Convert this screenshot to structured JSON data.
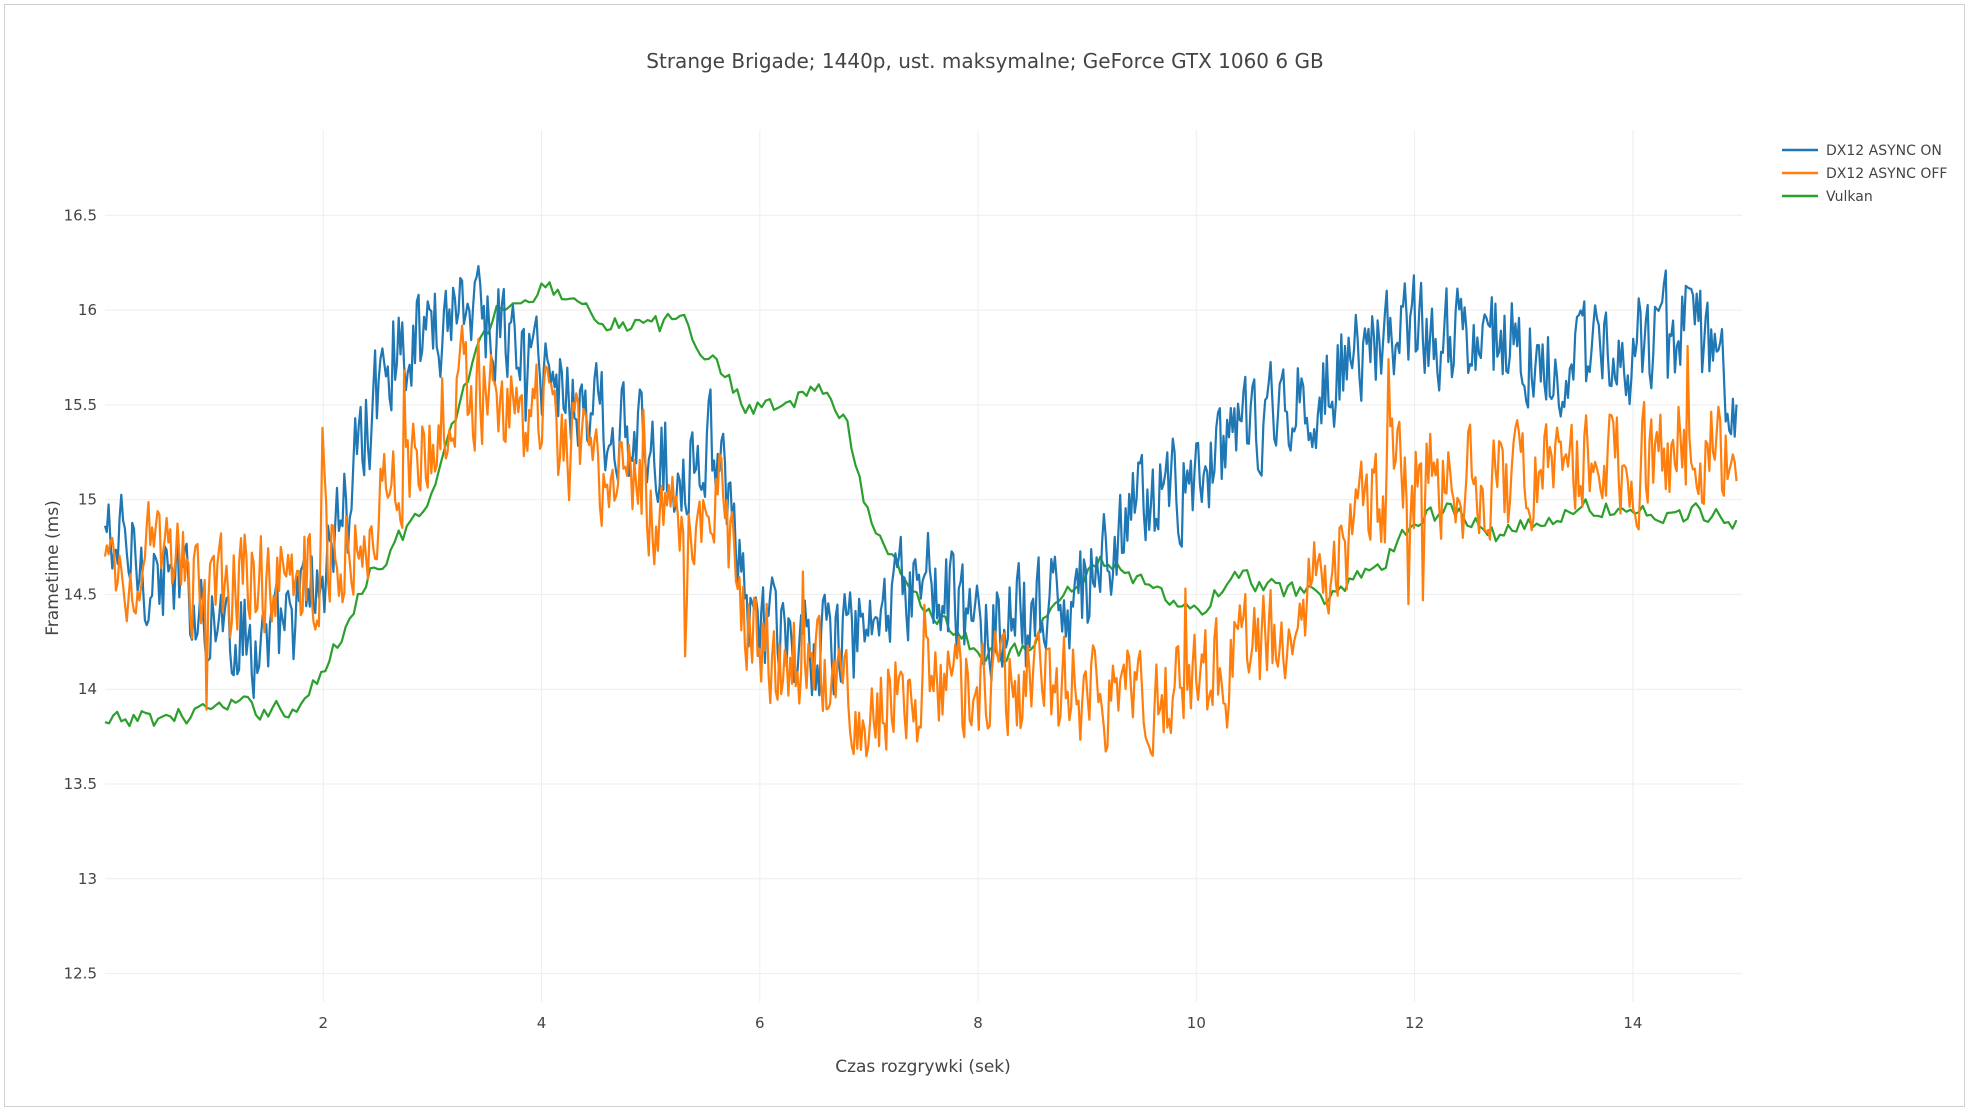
{
  "chart_data": {
    "type": "line",
    "title": "Strange Brigade; 1440p, ust. maksymalne; GeForce GTX 1060 6 GB",
    "xlabel": "Czas rozgrywki (sek)",
    "ylabel": "Frametime (ms)",
    "xlim": [
      0,
      15
    ],
    "ylim": [
      12.35,
      16.95
    ],
    "xticks": [
      2,
      4,
      6,
      8,
      10,
      12,
      14
    ],
    "yticks": [
      12.5,
      13,
      13.5,
      14,
      14.5,
      15,
      15.5,
      16,
      16.5
    ],
    "grid": true,
    "legend_position": "top-right",
    "series": [
      {
        "name": "DX12 ASYNC ON",
        "color": "#1f77b4",
        "jitter": 0.25,
        "x": [
          0,
          0.5,
          1.0,
          1.5,
          2.0,
          2.3,
          2.6,
          3.0,
          3.3,
          3.6,
          4.0,
          4.4,
          4.8,
          5.2,
          5.6,
          5.8,
          6.0,
          6.5,
          7.0,
          7.5,
          8.0,
          8.5,
          9.0,
          9.5,
          10.0,
          10.5,
          11.0,
          11.5,
          12.0,
          12.5,
          13.0,
          13.5,
          14.0,
          14.5,
          14.95
        ],
        "y": [
          14.8,
          14.6,
          14.4,
          14.2,
          14.6,
          15.2,
          15.8,
          15.9,
          16.1,
          15.9,
          15.7,
          15.5,
          15.3,
          15.2,
          15.3,
          14.6,
          14.3,
          14.2,
          14.3,
          14.6,
          14.3,
          14.4,
          14.5,
          15.0,
          15.1,
          15.4,
          15.5,
          15.8,
          15.9,
          15.9,
          15.8,
          15.7,
          15.8,
          15.9,
          15.6
        ]
      },
      {
        "name": "DX12 ASYNC OFF",
        "color": "#ff7f0e",
        "jitter": 0.26,
        "x": [
          0,
          0.5,
          1.0,
          1.5,
          2.0,
          2.3,
          2.6,
          3.0,
          3.3,
          3.6,
          4.0,
          4.4,
          4.8,
          5.2,
          5.6,
          6.0,
          6.5,
          7.0,
          7.5,
          8.0,
          8.5,
          9.0,
          9.5,
          10.0,
          10.5,
          11.0,
          11.3,
          11.6,
          12.0,
          12.5,
          13.0,
          13.5,
          14.0,
          14.5,
          14.95
        ],
        "y": [
          14.6,
          14.7,
          14.5,
          14.6,
          14.7,
          14.8,
          15.0,
          15.4,
          15.6,
          15.5,
          15.4,
          15.2,
          15.0,
          14.9,
          15.0,
          14.2,
          14.1,
          13.9,
          14.0,
          14.0,
          14.0,
          14.0,
          14.0,
          14.0,
          14.2,
          14.4,
          14.7,
          15.0,
          15.1,
          15.1,
          15.1,
          15.2,
          15.2,
          15.3,
          15.2
        ]
      },
      {
        "name": "Vulkan",
        "color": "#2ca02c",
        "jitter": 0.05,
        "x": [
          0,
          0.3,
          0.6,
          1.0,
          1.4,
          1.8,
          2.1,
          2.4,
          2.7,
          3.0,
          3.2,
          3.4,
          3.6,
          3.9,
          4.2,
          4.6,
          5.0,
          5.3,
          5.6,
          5.9,
          6.2,
          6.5,
          6.8,
          7.0,
          7.3,
          7.6,
          8.0,
          8.4,
          8.8,
          9.2,
          9.6,
          10.0,
          10.4,
          10.8,
          11.2,
          11.6,
          12.0,
          12.4,
          12.8,
          13.2,
          13.6,
          14.0,
          14.4,
          14.8,
          14.95
        ],
        "y": [
          13.8,
          13.85,
          13.85,
          13.9,
          13.9,
          13.9,
          14.2,
          14.6,
          14.8,
          15.0,
          15.4,
          15.8,
          16.0,
          16.1,
          16.1,
          15.95,
          15.9,
          15.95,
          15.7,
          15.5,
          15.5,
          15.6,
          15.4,
          14.9,
          14.6,
          14.4,
          14.2,
          14.2,
          14.5,
          14.7,
          14.5,
          14.4,
          14.6,
          14.5,
          14.5,
          14.6,
          14.9,
          14.95,
          14.8,
          14.9,
          14.95,
          14.95,
          14.9,
          14.95,
          14.9
        ]
      }
    ]
  }
}
